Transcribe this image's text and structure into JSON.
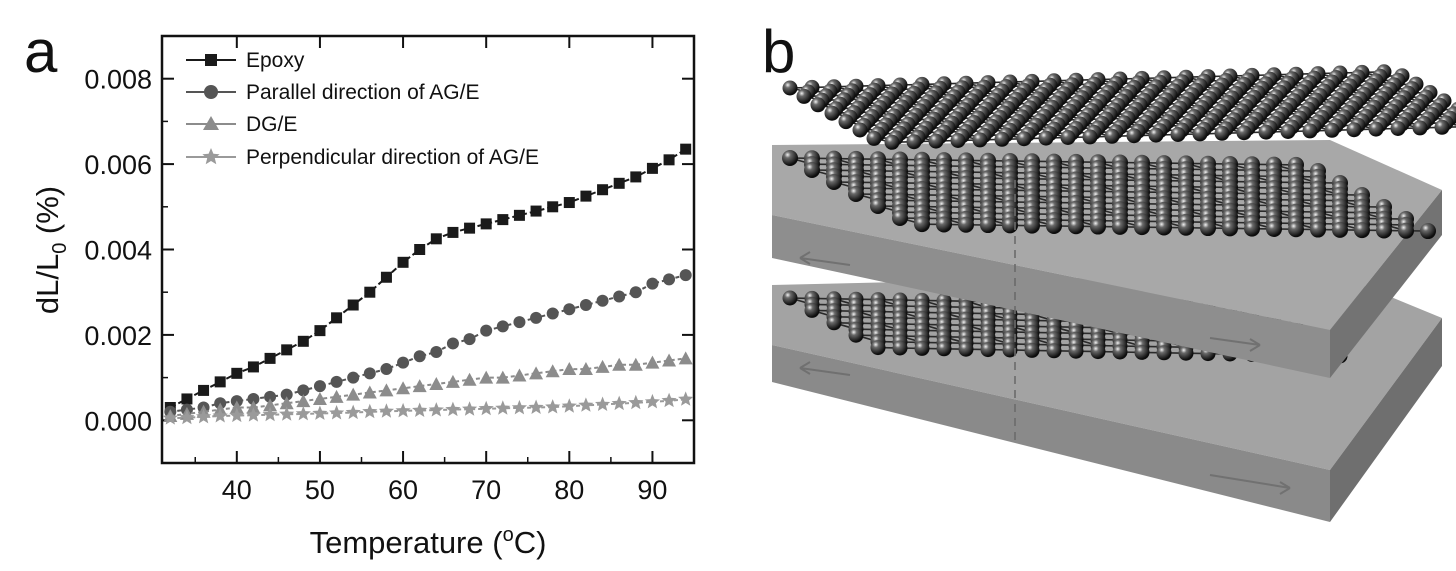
{
  "panels": {
    "a_label": "a",
    "b_label": "b"
  },
  "chart_data": {
    "type": "line",
    "xlabel_main": "Temperature (",
    "xlabel_sup": "o",
    "xlabel_end": "C)",
    "ylabel_main": "dL/L",
    "ylabel_sub": "0",
    "ylabel_end": " (%)",
    "xlim": [
      31,
      95
    ],
    "ylim": [
      -0.001,
      0.009
    ],
    "xticks": [
      40,
      50,
      60,
      70,
      80,
      90
    ],
    "xtick_labels": [
      "40",
      "50",
      "60",
      "70",
      "80",
      "90"
    ],
    "yticks": [
      0.0,
      0.002,
      0.004,
      0.006,
      0.008
    ],
    "ytick_labels": [
      "0.000",
      "0.002",
      "0.004",
      "0.006",
      "0.008"
    ],
    "legend_position": "top-left",
    "x": [
      32,
      34,
      36,
      38,
      40,
      42,
      44,
      46,
      48,
      50,
      52,
      54,
      56,
      58,
      60,
      62,
      64,
      66,
      68,
      70,
      72,
      74,
      76,
      78,
      80,
      82,
      84,
      86,
      88,
      90,
      92,
      94
    ],
    "series": [
      {
        "name": "Epoxy",
        "marker": "square",
        "color": "#1a1a1a",
        "values": [
          0.0003,
          0.0005,
          0.0007,
          0.0009,
          0.0011,
          0.00125,
          0.00145,
          0.00165,
          0.00185,
          0.0021,
          0.0024,
          0.0027,
          0.003,
          0.00335,
          0.0037,
          0.004,
          0.00425,
          0.0044,
          0.0045,
          0.0046,
          0.0047,
          0.0048,
          0.0049,
          0.005,
          0.0051,
          0.00525,
          0.0054,
          0.00555,
          0.0057,
          0.0059,
          0.0061,
          0.00635
        ]
      },
      {
        "name": "Parallel direction of AG/E",
        "marker": "circle",
        "color": "#555555",
        "values": [
          0.0002,
          0.00025,
          0.0003,
          0.0004,
          0.00045,
          0.0005,
          0.00055,
          0.0006,
          0.0007,
          0.0008,
          0.0009,
          0.001,
          0.0011,
          0.0012,
          0.00135,
          0.0015,
          0.0016,
          0.0018,
          0.0019,
          0.0021,
          0.0022,
          0.0023,
          0.0024,
          0.0025,
          0.0026,
          0.0027,
          0.0028,
          0.0029,
          0.003,
          0.0032,
          0.0033,
          0.0034
        ]
      },
      {
        "name": "DG/E",
        "marker": "triangle",
        "color": "#8c8c8c",
        "values": [
          0.0001,
          0.00015,
          0.0002,
          0.00025,
          0.0003,
          0.0003,
          0.00035,
          0.0004,
          0.00045,
          0.0005,
          0.00055,
          0.0006,
          0.00065,
          0.0007,
          0.00075,
          0.0008,
          0.00085,
          0.0009,
          0.00095,
          0.001,
          0.001,
          0.00105,
          0.0011,
          0.00115,
          0.0012,
          0.0012,
          0.00125,
          0.0013,
          0.0013,
          0.00135,
          0.0014,
          0.00145
        ]
      },
      {
        "name": "Perpendicular direction of AG/E",
        "marker": "star",
        "color": "#9a9a9a",
        "values": [
          5e-05,
          6e-05,
          8e-05,
          0.0001,
          0.00011,
          0.00012,
          0.00013,
          0.00014,
          0.00015,
          0.00016,
          0.00017,
          0.00018,
          0.0002,
          0.00021,
          0.00022,
          0.00023,
          0.00024,
          0.00025,
          0.00026,
          0.00027,
          0.00028,
          0.00029,
          0.0003,
          0.00031,
          0.00033,
          0.00035,
          0.00037,
          0.00039,
          0.00041,
          0.00043,
          0.00046,
          0.00049
        ]
      }
    ]
  },
  "schematic": {
    "description_hidden": "",
    "colors": {
      "slab_top": "#9c9c9c",
      "slab_side": "#7a7a7a",
      "atom": "#1e1e1e",
      "bond": "#2a2a2a"
    }
  }
}
